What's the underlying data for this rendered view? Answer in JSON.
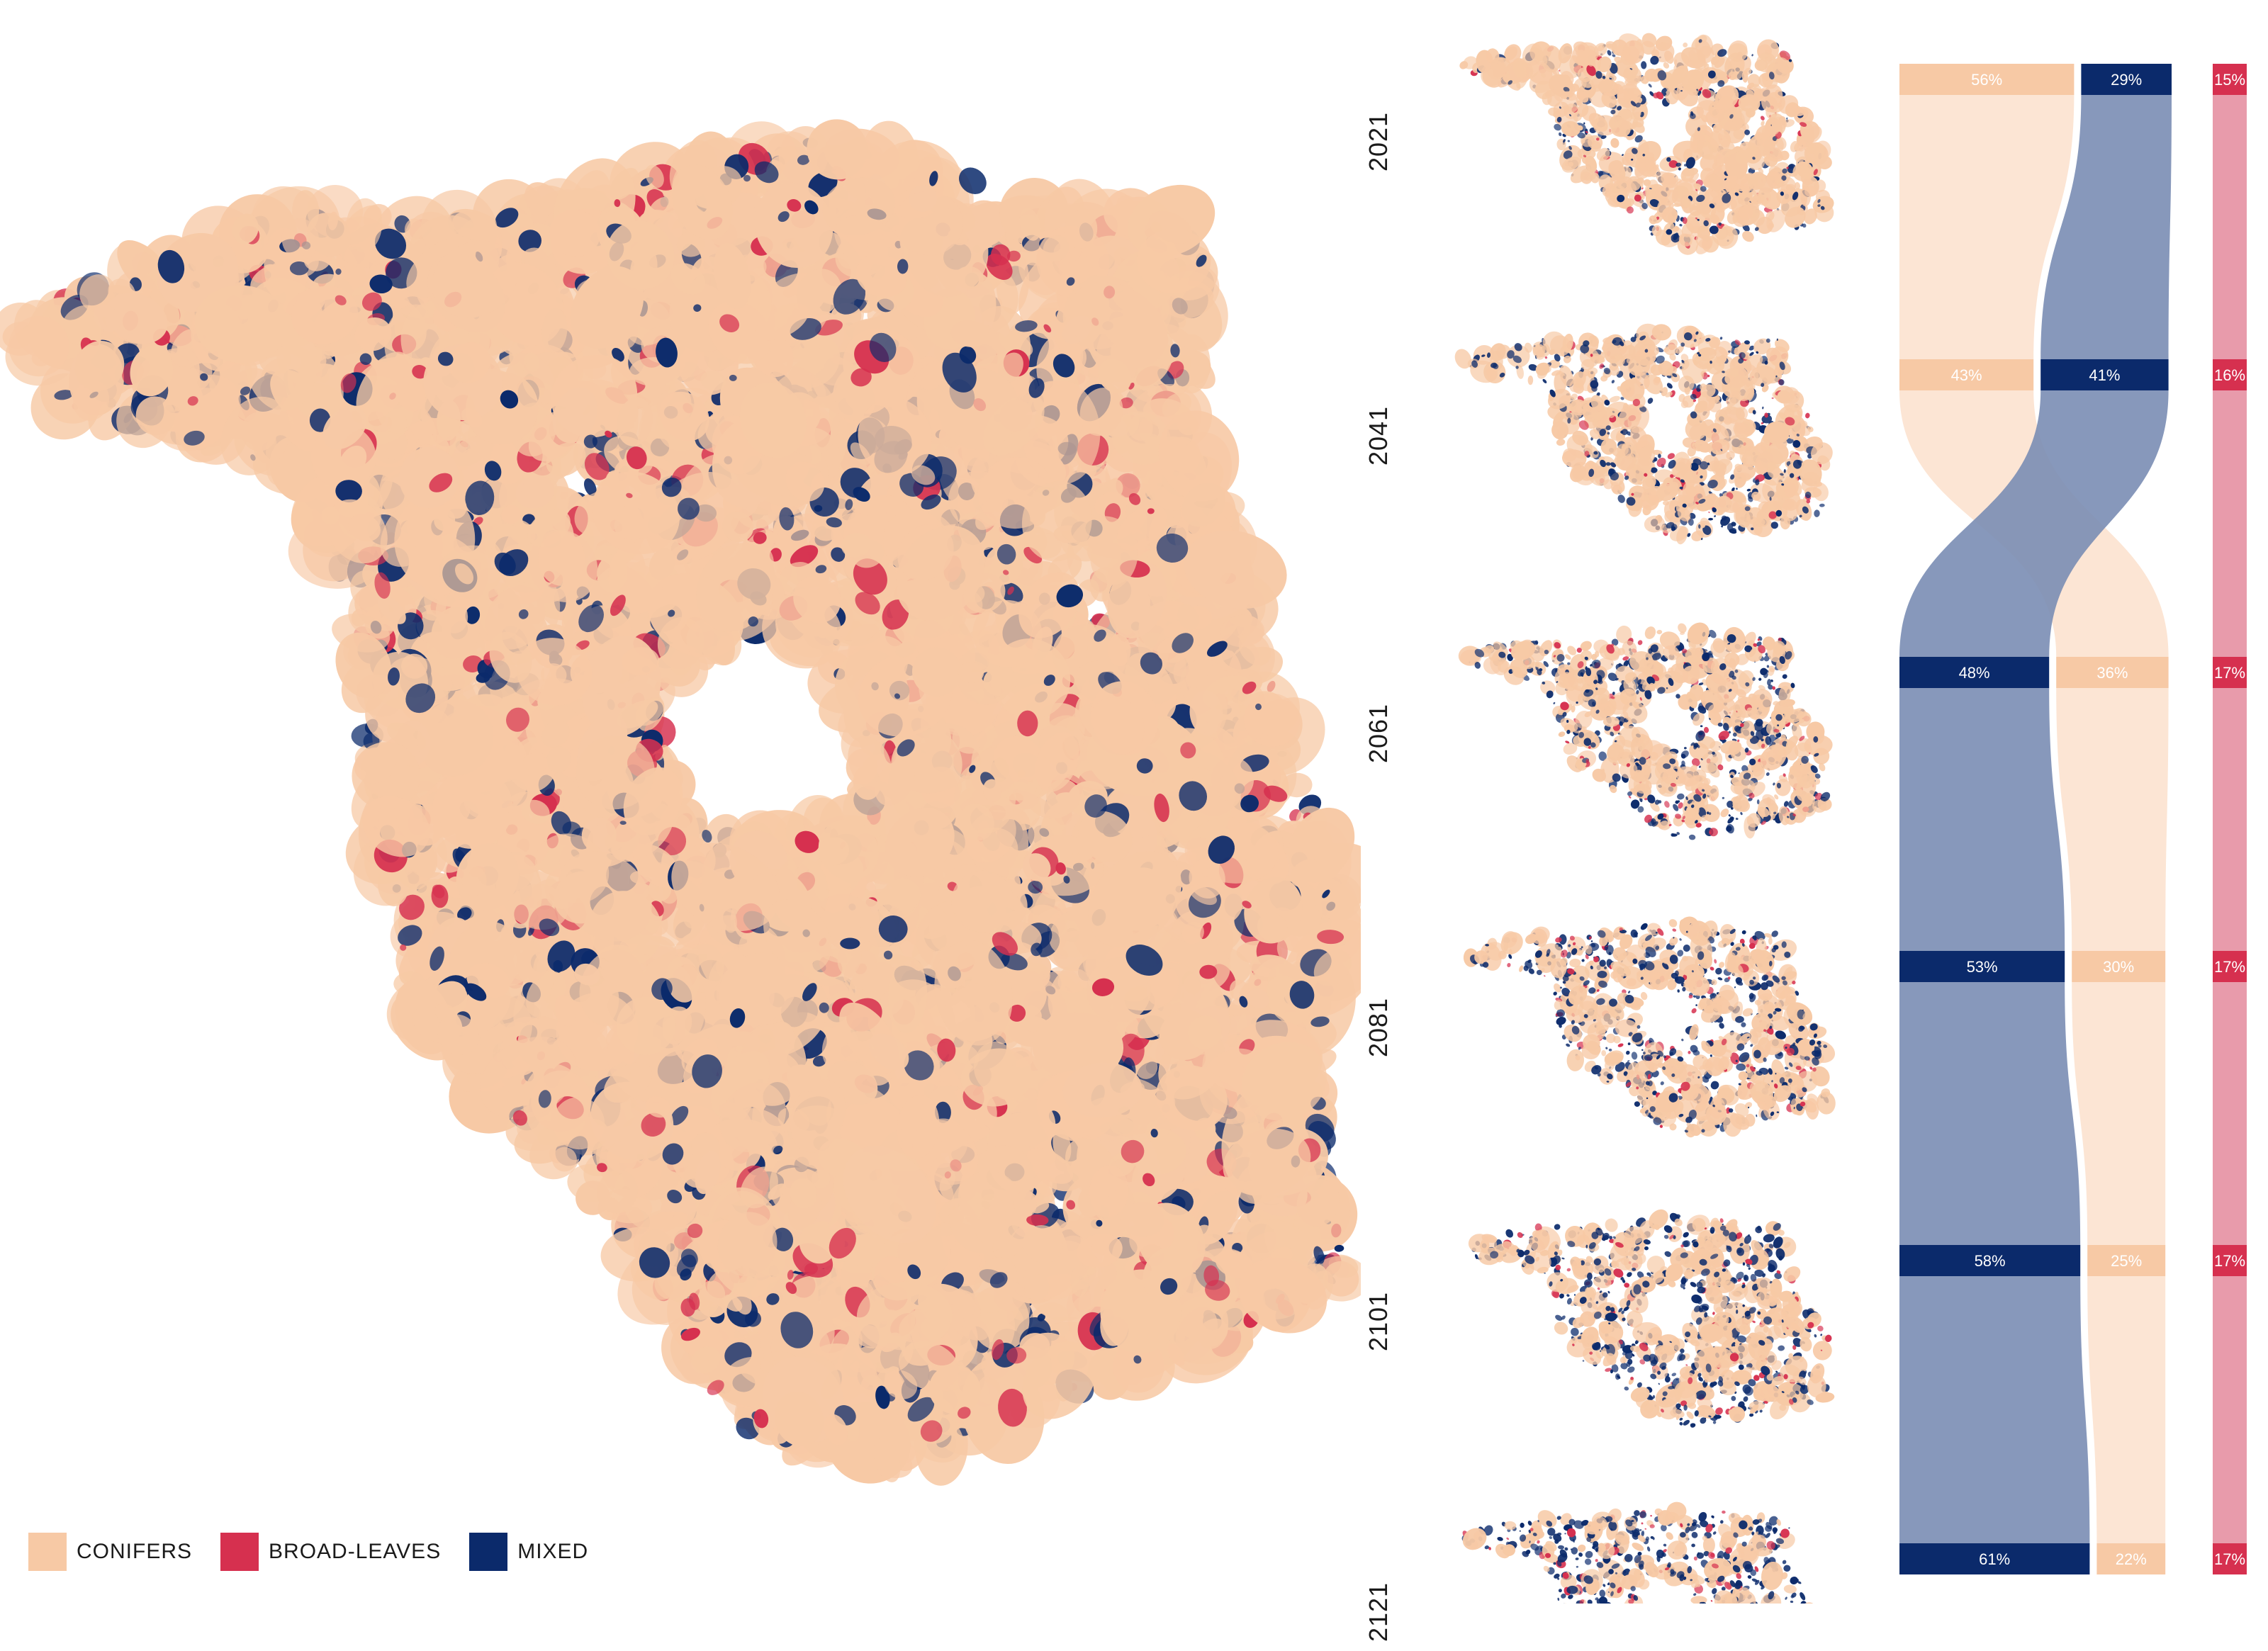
{
  "colors": {
    "conifers": "#f7c9a5",
    "broadleaves": "#d6304f",
    "mixed": "#0b2a6b",
    "conifers_flow": "#fbe0cd",
    "broadleaves_flow": "#e48a9c",
    "mixed_flow": "#7a8db4"
  },
  "legend": {
    "conifers_label": "CONIFERS",
    "broadleaves_label": "BROAD-LEAVES",
    "mixed_label": "MIXED"
  },
  "chart_data": {
    "type": "sankey",
    "title": "",
    "years": [
      "2021",
      "2041",
      "2061",
      "2081",
      "2101",
      "2121"
    ],
    "series": [
      {
        "name": "CONIFERS",
        "values": [
          56,
          43,
          36,
          30,
          25,
          22
        ]
      },
      {
        "name": "BROAD-LEAVES",
        "values": [
          15,
          16,
          17,
          17,
          17,
          17
        ]
      },
      {
        "name": "MIXED",
        "values": [
          29,
          41,
          48,
          53,
          58,
          61
        ]
      }
    ],
    "value_labels": {
      "CONIFERS": [
        "56%",
        "43%",
        "36%",
        "30%",
        "25%",
        "22%"
      ],
      "BROAD-LEAVES": [
        "15%",
        "16%",
        "17%",
        "17%",
        "17%",
        "17%"
      ],
      "MIXED": [
        "29%",
        "41%",
        "48%",
        "53%",
        "58%",
        "61%"
      ]
    },
    "node_order_by_year": [
      [
        "CONIFERS",
        "MIXED",
        "BROAD-LEAVES"
      ],
      [
        "CONIFERS",
        "MIXED",
        "BROAD-LEAVES"
      ],
      [
        "MIXED",
        "CONIFERS",
        "BROAD-LEAVES"
      ],
      [
        "MIXED",
        "CONIFERS",
        "BROAD-LEAVES"
      ],
      [
        "MIXED",
        "CONIFERS",
        "BROAD-LEAVES"
      ],
      [
        "MIXED",
        "CONIFERS",
        "BROAD-LEAVES"
      ]
    ]
  }
}
